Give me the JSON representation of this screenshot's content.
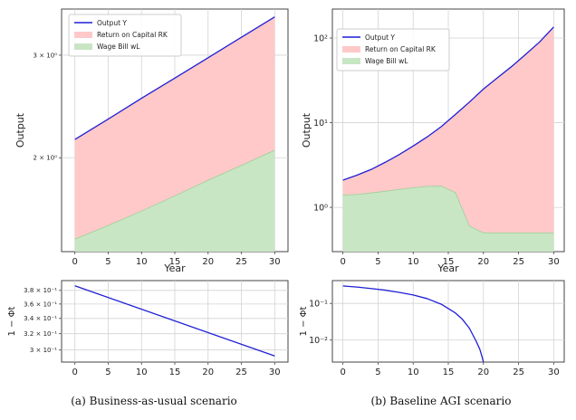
{
  "captions": {
    "a": "(a) Business-as-usual scenario",
    "b": "(b) Baseline AGI scenario"
  },
  "colors": {
    "output": "#1f1fd6",
    "capital_fill": "#ffc9c9",
    "wage_fill": "#c8e6c4",
    "wage_line": "#9ccf97",
    "grid": "#d3d3d3"
  },
  "chart_data": [
    {
      "id": "bau_top",
      "type": "area",
      "title": "",
      "xlabel": "Year",
      "ylabel": "Output",
      "yscale": "log",
      "xlim": [
        -2,
        32
      ],
      "ylim": [
        1.38,
        3.6
      ],
      "x_ticks": [
        0,
        5,
        10,
        15,
        20,
        25,
        30
      ],
      "x_tick_labels": [
        "0",
        "5",
        "10",
        "15",
        "20",
        "25",
        "30"
      ],
      "y_ticks": [
        2,
        3
      ],
      "y_tick_labels": [
        "2 × 10⁰",
        "3 × 10⁰"
      ],
      "legend": {
        "position": "top-left",
        "entries": [
          "Output Y",
          "Return on Capital RK",
          "Wage Bill wL"
        ]
      },
      "x": [
        0,
        5,
        10,
        15,
        20,
        25,
        30
      ],
      "series": [
        {
          "name": "Output Y",
          "values": [
            2.15,
            2.33,
            2.53,
            2.74,
            2.97,
            3.22,
            3.49
          ]
        },
        {
          "name": "Wage Bill wL",
          "values": [
            1.45,
            1.53,
            1.62,
            1.72,
            1.83,
            1.94,
            2.06
          ]
        }
      ]
    },
    {
      "id": "agi_top",
      "type": "area",
      "title": "",
      "xlabel": "Year",
      "ylabel": "Output",
      "yscale": "log",
      "xlim": [
        -1.5,
        31.5
      ],
      "ylim": [
        0.3,
        220
      ],
      "x_ticks": [
        0,
        5,
        10,
        15,
        20,
        25,
        30
      ],
      "x_tick_labels": [
        "0",
        "5",
        "10",
        "15",
        "20",
        "25",
        "30"
      ],
      "y_ticks": [
        1,
        10,
        100
      ],
      "y_tick_labels": [
        "10⁰",
        "10¹",
        "10²"
      ],
      "legend": {
        "position": "top-left",
        "entries": [
          "Output Y",
          "Return on Capital RK",
          "Wage Bill wL"
        ]
      },
      "x": [
        0,
        2,
        4,
        6,
        8,
        10,
        12,
        14,
        16,
        18,
        20,
        22,
        24,
        26,
        28,
        30
      ],
      "series": [
        {
          "name": "Output Y",
          "values": [
            2.1,
            2.4,
            2.8,
            3.4,
            4.2,
            5.3,
            6.8,
            9.0,
            12.5,
            17.5,
            25,
            34,
            46,
            64,
            90,
            135
          ]
        },
        {
          "name": "Wage Bill wL",
          "values": [
            1.4,
            1.42,
            1.48,
            1.55,
            1.63,
            1.7,
            1.77,
            1.78,
            1.5,
            0.6,
            0.5,
            0.5,
            0.5,
            0.5,
            0.5,
            0.5
          ]
        }
      ]
    },
    {
      "id": "bau_bottom",
      "type": "line",
      "title": "",
      "xlabel": "Year",
      "ylabel": "1 − Φt",
      "yscale": "log",
      "xlim": [
        -2,
        32
      ],
      "ylim": [
        0.286,
        0.395
      ],
      "x_ticks": [
        0,
        5,
        10,
        15,
        20,
        25,
        30
      ],
      "x_tick_labels": [
        "0",
        "5",
        "10",
        "15",
        "20",
        "25",
        "30"
      ],
      "y_ticks": [
        0.3,
        0.32,
        0.34,
        0.36,
        0.38
      ],
      "y_tick_labels": [
        "3 × 10⁻¹",
        "3.2 × 10⁻¹",
        "3.4 × 10⁻¹",
        "3.6 × 10⁻¹",
        "3.8 × 10⁻¹"
      ],
      "x": [
        0,
        30
      ],
      "series": [
        {
          "name": "1 − Φt",
          "values": [
            0.387,
            0.293
          ]
        }
      ]
    },
    {
      "id": "agi_bottom",
      "type": "line",
      "title": "",
      "xlabel": "Year",
      "ylabel": "1 − Φt",
      "yscale": "log",
      "xlim": [
        -1.5,
        31.5
      ],
      "ylim": [
        0.0025,
        0.42
      ],
      "x_ticks": [
        0,
        5,
        10,
        15,
        20,
        25,
        30
      ],
      "x_tick_labels": [
        "0",
        "5",
        "10",
        "15",
        "20",
        "25",
        "30"
      ],
      "y_ticks": [
        0.01,
        0.1
      ],
      "y_tick_labels": [
        "10⁻²",
        "10⁻¹"
      ],
      "x": [
        0,
        2,
        4,
        6,
        8,
        10,
        12,
        14,
        16,
        17,
        18,
        19,
        19.5,
        19.8,
        20
      ],
      "series": [
        {
          "name": "1 − Φt",
          "values": [
            0.3,
            0.28,
            0.255,
            0.23,
            0.2,
            0.17,
            0.135,
            0.095,
            0.055,
            0.037,
            0.021,
            0.009,
            0.0055,
            0.0035,
            0.0025
          ]
        }
      ]
    }
  ]
}
